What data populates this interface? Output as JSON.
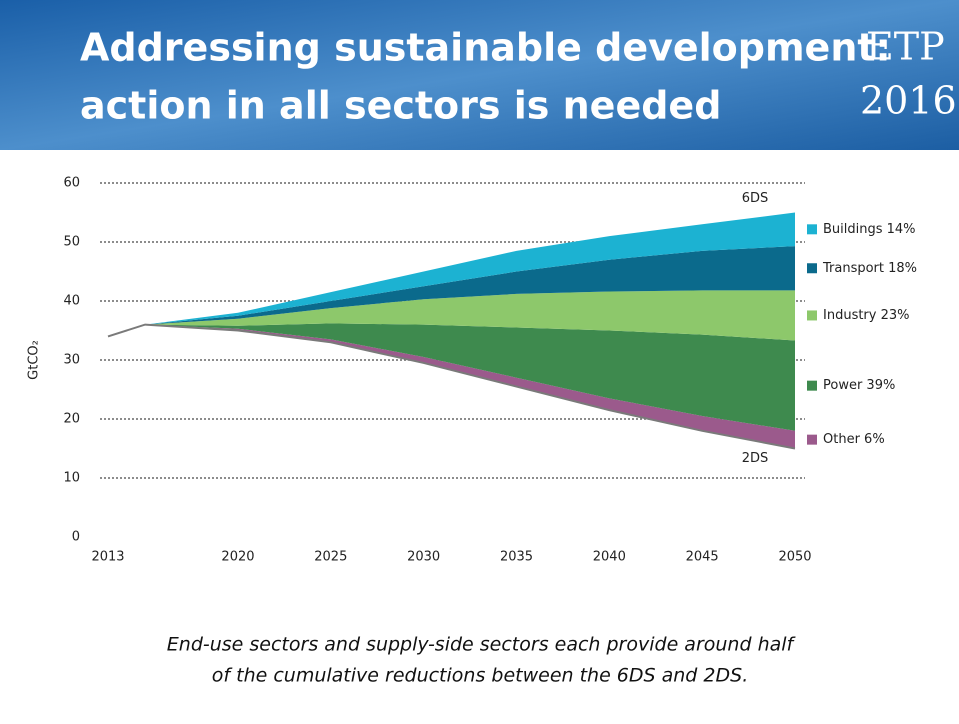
{
  "header": {
    "title_lines": [
      "Addressing sustainable development:",
      "action in all sectors is needed"
    ],
    "badge_lines": [
      "ETP",
      "2016"
    ]
  },
  "chart_data": {
    "type": "area",
    "stacked": true,
    "y_label": "GtCO₂",
    "x": [
      2013,
      2015,
      2020,
      2025,
      2030,
      2035,
      2040,
      2045,
      2050
    ],
    "xlim": [
      2013,
      2050
    ],
    "xticks": [
      2013,
      2020,
      2025,
      2030,
      2035,
      2040,
      2045,
      2050
    ],
    "ylim": [
      0,
      60
    ],
    "yticks": [
      0,
      10,
      20,
      30,
      40,
      50,
      60
    ],
    "grid": true,
    "series": [
      {
        "name": "2DS",
        "color": "#7a7a7a",
        "values": [
          34,
          36,
          35,
          33,
          29.5,
          25.5,
          21.5,
          18,
          15
        ]
      },
      {
        "name": "Other 6%",
        "color": "#9b5a8c",
        "values": [
          0,
          0,
          0.3,
          0.5,
          1,
          1.5,
          2,
          2.5,
          3
        ]
      },
      {
        "name": "Power 39%",
        "color": "#3e8a4e",
        "values": [
          0,
          0,
          0.5,
          2.7,
          5.5,
          8.5,
          11.5,
          13.8,
          15.3
        ]
      },
      {
        "name": "Industry 23%",
        "color": "#8dc86b",
        "values": [
          0,
          0,
          1.2,
          2.6,
          4.3,
          5.7,
          6.6,
          7.5,
          8.5
        ]
      },
      {
        "name": "Transport 18%",
        "color": "#0b6a8c",
        "values": [
          0,
          0,
          0.5,
          1.2,
          2.2,
          3.8,
          5.4,
          6.7,
          7.5
        ]
      },
      {
        "name": "Buildings 14%",
        "color": "#1cb2d2",
        "values": [
          0,
          0,
          0.5,
          1.5,
          2.5,
          3.5,
          4,
          4.5,
          5.7
        ]
      }
    ],
    "annotations": [
      "6DS"
    ]
  },
  "caption_lines": [
    "End-use sectors and supply-side sectors each provide around half",
    "of the cumulative reductions between the 6DS and 2DS."
  ]
}
